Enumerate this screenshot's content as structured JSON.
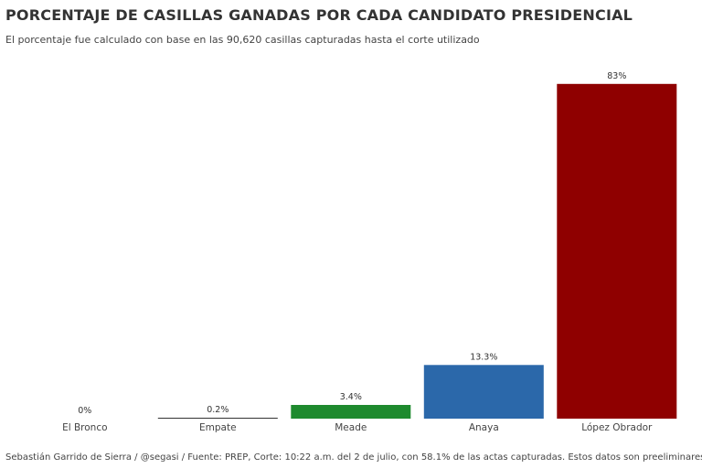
{
  "chart_data": {
    "type": "bar",
    "title": "PORCENTAJE DE CASILLAS GANADAS POR CADA CANDIDATO PRESIDENCIAL",
    "subtitle": "El porcentaje fue calculado con base en las 90,620 casillas capturadas hasta el corte utilizado",
    "categories": [
      "El Bronco",
      "Empate",
      "Meade",
      "Anaya",
      "López Obrador"
    ],
    "values": [
      0,
      0.2,
      3.4,
      13.3,
      83
    ],
    "data_labels": [
      "0%",
      "0.2%",
      "3.4%",
      "13.3%",
      "83%"
    ],
    "colors": [
      "#333333",
      "#333333",
      "#1e8a2e",
      "#2b68aa",
      "#8f0000"
    ],
    "xlabel": "",
    "ylabel": "",
    "ylim": [
      0,
      85
    ],
    "grid": false,
    "caption": "Sebastián Garrido de Sierra / @segasi / Fuente: PREP, Corte: 10:22 a.m. del 2 de julio, con 58.1% de las actas capturadas. Estos datos son preeliminares."
  }
}
